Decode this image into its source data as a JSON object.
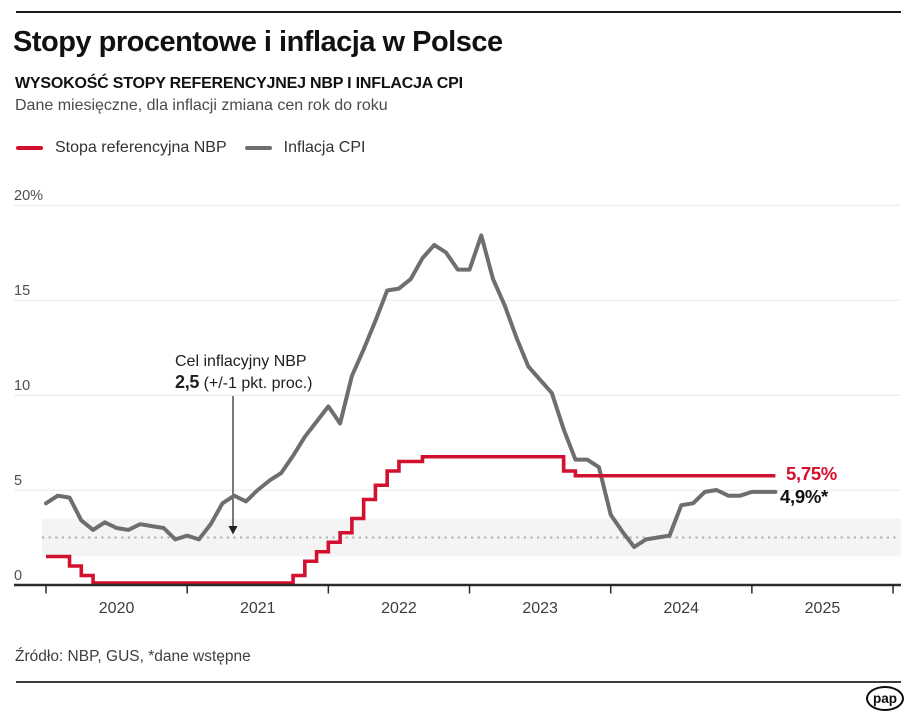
{
  "header": {
    "title": "Stopy procentowe i inflacja w Polsce",
    "subtitle": "WYSOKOŚĆ STOPY REFERENCYJNEJ NBP I INFLACJA CPI",
    "description": "Dane miesięczne, dla inflacji zmiana cen rok do roku"
  },
  "legend": {
    "items": [
      {
        "label": "Stopa referencyjna NBP",
        "color": "#d2102f"
      },
      {
        "label": "Inflacja CPI",
        "color": "#6e6e6e"
      }
    ]
  },
  "chart_data": {
    "type": "line",
    "x_unit": "month",
    "x_start": "2020-01",
    "x_end": "2025-03",
    "grid": "horizontal",
    "y_axis": {
      "range": [
        0,
        20
      ],
      "gridlines": [
        5,
        10,
        15,
        20
      ],
      "ticks": [
        {
          "label": "20%",
          "value": 20
        },
        {
          "label": "15",
          "value": 15
        },
        {
          "label": "10",
          "value": 10
        },
        {
          "label": "5",
          "value": 5
        },
        {
          "label": "0",
          "value": 0
        }
      ]
    },
    "x_axis": {
      "year_labels": [
        "2020",
        "2021",
        "2022",
        "2023",
        "2024",
        "2025"
      ]
    },
    "inflation_target": {
      "value": 2.5,
      "band": [
        1.5,
        3.5
      ]
    },
    "annotation": {
      "line1": "Cel inflacyjny NBP",
      "bold": "2,5",
      "rest": " (+/-1 pkt. proc.)"
    },
    "series": [
      {
        "name": "Stopa referencyjna NBP",
        "style": "step",
        "color": "#d2102f",
        "end_label": "5,75%",
        "values": [
          1.5,
          1.5,
          1.0,
          0.5,
          0.1,
          0.1,
          0.1,
          0.1,
          0.1,
          0.1,
          0.1,
          0.1,
          0.1,
          0.1,
          0.1,
          0.1,
          0.1,
          0.1,
          0.1,
          0.1,
          0.1,
          0.5,
          1.25,
          1.75,
          2.25,
          2.75,
          3.5,
          4.5,
          5.25,
          6.0,
          6.5,
          6.5,
          6.75,
          6.75,
          6.75,
          6.75,
          6.75,
          6.75,
          6.75,
          6.75,
          6.75,
          6.75,
          6.75,
          6.75,
          6.0,
          5.75,
          5.75,
          5.75,
          5.75,
          5.75,
          5.75,
          5.75,
          5.75,
          5.75,
          5.75,
          5.75,
          5.75,
          5.75,
          5.75,
          5.75,
          5.75,
          5.75,
          5.75
        ]
      },
      {
        "name": "Inflacja CPI",
        "style": "line",
        "color": "#6e6e6e",
        "end_label": "4,9%*",
        "values": [
          4.3,
          4.7,
          4.6,
          3.4,
          2.9,
          3.3,
          3.0,
          2.9,
          3.2,
          3.1,
          3.0,
          2.4,
          2.6,
          2.4,
          3.2,
          4.3,
          4.7,
          4.4,
          5.0,
          5.5,
          5.9,
          6.8,
          7.8,
          8.6,
          9.4,
          8.5,
          11.0,
          12.4,
          13.9,
          15.5,
          15.6,
          16.1,
          17.2,
          17.9,
          17.5,
          16.6,
          16.6,
          18.4,
          16.1,
          14.7,
          13.0,
          11.5,
          10.8,
          10.1,
          8.2,
          6.6,
          6.6,
          6.2,
          3.7,
          2.8,
          2.0,
          2.4,
          2.5,
          2.6,
          4.2,
          4.3,
          4.9,
          5.0,
          4.7,
          4.7,
          4.9,
          4.9,
          4.9
        ]
      }
    ]
  },
  "footer": {
    "source": "Źródło: NBP, GUS, *dane wstępne",
    "logo": "pap"
  },
  "colors": {
    "accent_red": "#d2102f",
    "line_gray": "#6e6e6e",
    "band_fill": "#f4f4f4",
    "target_dotted": "#b0b0b0",
    "axis": "#2b2b2b",
    "gridline": "#e8e8e8"
  }
}
